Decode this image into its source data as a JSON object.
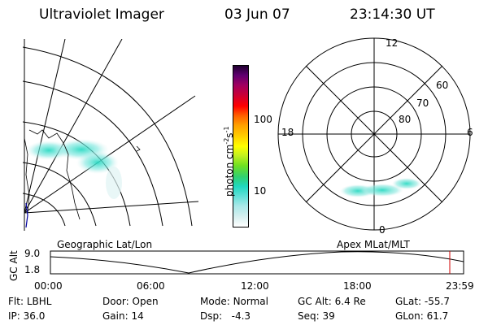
{
  "header": {
    "instrument": "Ultraviolet Imager",
    "date": "03 Jun 07",
    "time": "23:14:30 UT"
  },
  "colorbar": {
    "unit_label": "photon cm",
    "unit_exp1": "-2",
    "unit_s": "s",
    "unit_exp2": "-1",
    "ticks": [
      {
        "label": "100",
        "value": 100
      },
      {
        "label": "10",
        "value": 10
      }
    ],
    "colors": [
      "#ffffff",
      "#d8f0f0",
      "#a8e8e8",
      "#60e0d8",
      "#20d8c0",
      "#30d070",
      "#70e020",
      "#c0f020",
      "#ffff00",
      "#ffd000",
      "#ffa000",
      "#ff6000",
      "#ff0000",
      "#d00030",
      "#a00060",
      "#600070",
      "#200030"
    ]
  },
  "polar_plot": {
    "hour_labels": {
      "top": "12",
      "left": "18",
      "right": "6",
      "bottom": "0"
    },
    "lat_labels": [
      "60",
      "70",
      "80"
    ]
  },
  "map_labels": {
    "left": "Geographic Lat/Lon",
    "right": "Apex MLat/MLT"
  },
  "altitude_plot": {
    "ylabel": "GC Alt",
    "y_ticks": [
      "9.0",
      "1.8"
    ],
    "x_ticks": [
      "00:00",
      "06:00",
      "12:00",
      "18:00",
      "23:59"
    ],
    "current_time_color": "#d00000"
  },
  "info": {
    "filter_label": "Flt:",
    "filter_value": "LBHL",
    "ip_label": "IP:",
    "ip_value": "36.0",
    "door_label": "Door:",
    "door_value": "Open",
    "gain_label": "Gain:",
    "gain_value": "14",
    "mode_label": "Mode:",
    "mode_value": "Normal",
    "dsp_label": "Dsp:",
    "dsp_value": "-4.3",
    "gcalt_label": "GC Alt:",
    "gcalt_value": "6.4 Re",
    "seq_label": "Seq:",
    "seq_value": "39",
    "glat_label": "GLat:",
    "glat_value": "-55.7",
    "glon_label": "GLon:",
    "glon_value": "61.7"
  }
}
